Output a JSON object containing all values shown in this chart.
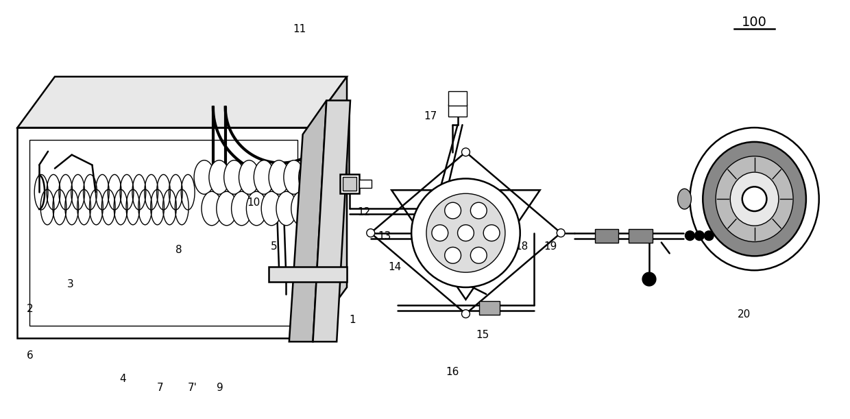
{
  "bg_color": "#ffffff",
  "fig_width": 12.4,
  "fig_height": 6.11,
  "title": "100",
  "lw_thin": 1.0,
  "lw_med": 1.8,
  "lw_thick": 3.0
}
